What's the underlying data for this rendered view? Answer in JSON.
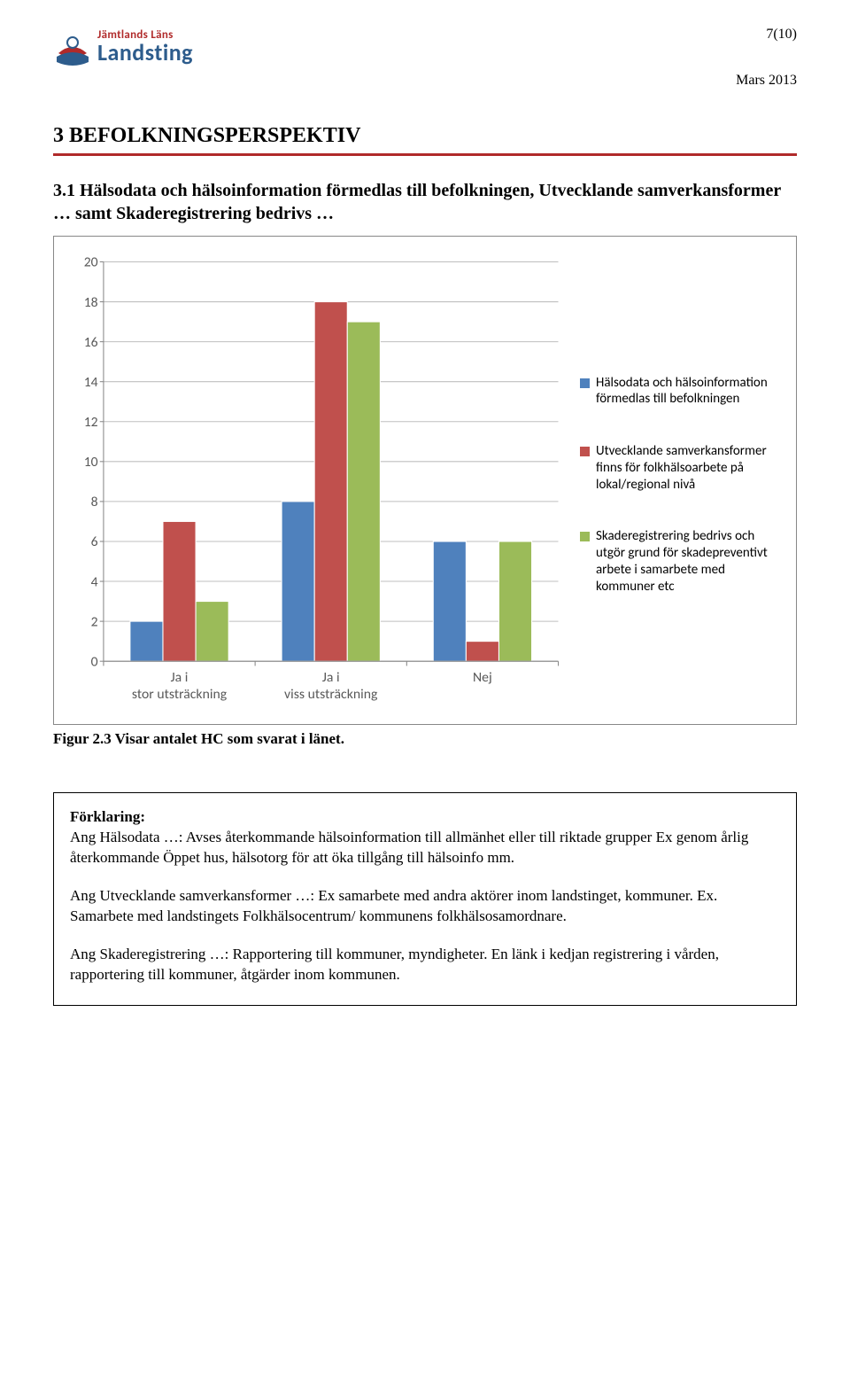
{
  "header": {
    "logo_line1": "Jämtlands Läns",
    "logo_line2": "Landsting",
    "page_number": "7(10)",
    "date": "Mars 2013"
  },
  "section": {
    "heading": "3 BEFOLKNINGSPERSPEKTIV",
    "sub_heading": "3.1 Hälsodata och hälsoinformation förmedlas till befolkningen, Utvecklande samverkansformer … samt Skaderegistrering bedrivs …"
  },
  "chart": {
    "type": "bar-grouped",
    "ylim": [
      0,
      20
    ],
    "ytick_step": 2,
    "yticks": [
      "0",
      "2",
      "4",
      "6",
      "8",
      "10",
      "12",
      "14",
      "16",
      "18",
      "20"
    ],
    "categories": [
      "Ja i stor utsträckning",
      "Ja i viss utsträckning",
      "Nej"
    ],
    "series": [
      {
        "name": "Hälsodata och hälsoinformation förmedlas till befolkningen",
        "color": "#4f81bd",
        "values": [
          2,
          8,
          6
        ]
      },
      {
        "name": "Utvecklande samverkansformer finns för folkhälsoarbete på lokal/regional nivå",
        "color": "#c0504d",
        "values": [
          7,
          18,
          1
        ]
      },
      {
        "name": "Skaderegistrering bedrivs och utgör grund för skadepreventivt arbete i samarbete med kommuner etc",
        "color": "#9bbb59",
        "values": [
          3,
          17,
          6
        ]
      }
    ],
    "bar_border_color": "#ffffff",
    "gridline_color": "#bfbfbf",
    "axis_color": "#888888",
    "label_fontsize": 15,
    "tick_fontsize": 15,
    "background_color": "#ffffff",
    "bar_group_gap": 0.35,
    "bar_width_rel": 0.22
  },
  "caption": "Figur 2.3 Visar antalet HC som svarat i länet.",
  "explain": {
    "heading": "Förklaring:",
    "p1": "Ang Hälsodata …: Avses återkommande hälsoinformation till allmänhet eller till riktade grupper Ex genom årlig återkommande Öppet hus, hälsotorg för att öka tillgång till hälsoinfo mm.",
    "p2": "Ang Utvecklande samverkansformer …: Ex samarbete med andra aktörer inom landstinget, kommuner. Ex. Samarbete med landstingets Folkhälsocentrum/ kommunens folkhälsosamordnare.",
    "p3": "Ang Skaderegistrering …: Rapportering till kommuner, myndigheter. En länk i kedjan registrering i vården, rapportering till kommuner, åtgärder inom kommunen."
  },
  "logo_colors": {
    "red": "#b02a2a",
    "blue": "#2d5c8c",
    "white": "#ffffff"
  }
}
